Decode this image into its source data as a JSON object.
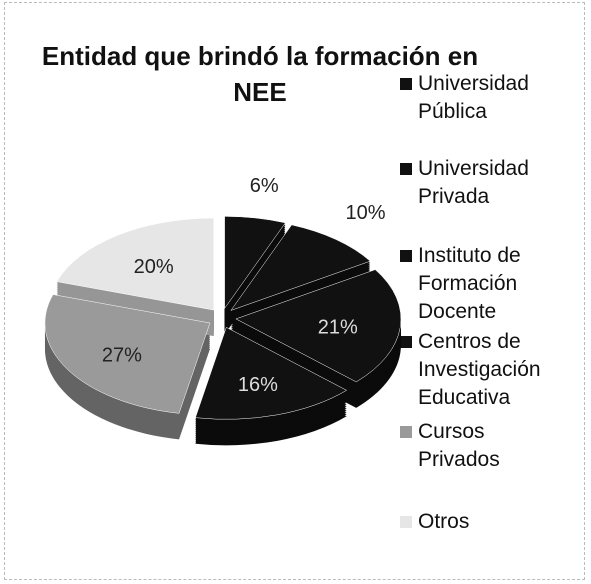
{
  "chart_data": {
    "type": "pie",
    "title": "Entidad que brindó la formación en NEE",
    "categories": [
      "Universidad Pública",
      "Universidad Privada",
      "Instituto de Formación Docente",
      "Centros de Investigación Educativa",
      "Cursos Privados",
      "Otros"
    ],
    "values": [
      6,
      10,
      21,
      16,
      27,
      20
    ],
    "value_labels": [
      "6%",
      "10%",
      "21%",
      "16%",
      "27%",
      "20%"
    ],
    "colors": [
      "#111111",
      "#111111",
      "#111111",
      "#111111",
      "#9a9a9a",
      "#e6e6e6"
    ],
    "legend": "right"
  }
}
